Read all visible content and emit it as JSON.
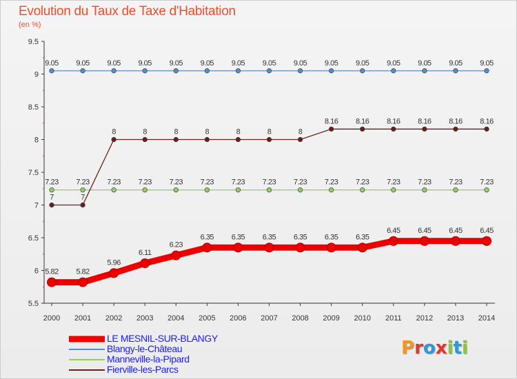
{
  "header": {
    "title": "Evolution du Taux de Taxe d'Habitation",
    "subtitle": "(en %)"
  },
  "logo": {
    "text": "Proxiti",
    "colors": [
      "#f7941d",
      "#2b9ad6",
      "#8cc63f",
      "#e4342b"
    ]
  },
  "chart_data": {
    "type": "line",
    "title": "Evolution du Taux de Taxe d'Habitation",
    "ylabel": "(en %)",
    "xlabel": "",
    "x": [
      "2000",
      "2001",
      "2002",
      "2003",
      "2004",
      "2005",
      "2006",
      "2007",
      "2008",
      "2009",
      "2010",
      "2011",
      "2012",
      "2013",
      "2014"
    ],
    "ylim": [
      5.5,
      9.5
    ],
    "yticks": [
      "5.5",
      "6",
      "6.5",
      "7",
      "7.5",
      "8",
      "8.5",
      "9",
      "9.5"
    ],
    "grid": false,
    "legend_position": "bottom-left",
    "series": [
      {
        "name": "LE MESNIL-SUR-BLANGY",
        "color": "#ee0000",
        "values": [
          5.82,
          5.82,
          5.96,
          6.11,
          6.23,
          6.35,
          6.35,
          6.35,
          6.35,
          6.35,
          6.35,
          6.45,
          6.45,
          6.45,
          6.45
        ],
        "labels": [
          "5.82",
          "5.82",
          "5.96",
          "6.11",
          "6.23",
          "6.35",
          "6.35",
          "6.35",
          "6.35",
          "6.35",
          "6.35",
          "6.45",
          "6.45",
          "6.45",
          "6.45"
        ]
      },
      {
        "name": "Blangy-le-Château",
        "color": "#4f8fd0",
        "values": [
          9.05,
          9.05,
          9.05,
          9.05,
          9.05,
          9.05,
          9.05,
          9.05,
          9.05,
          9.05,
          9.05,
          9.05,
          9.05,
          9.05,
          9.05
        ],
        "labels": [
          "9.05",
          "9.05",
          "9.05",
          "9.05",
          "9.05",
          "9.05",
          "9.05",
          "9.05",
          "9.05",
          "9.05",
          "9.05",
          "9.05",
          "9.05",
          "9.05",
          "9.05"
        ]
      },
      {
        "name": "Manneville-la-Pipard",
        "color": "#8fd15f",
        "values": [
          7.23,
          7.23,
          7.23,
          7.23,
          7.23,
          7.23,
          7.23,
          7.23,
          7.23,
          7.23,
          7.23,
          7.23,
          7.23,
          7.23,
          7.23
        ],
        "labels": [
          "7.23",
          "7.23",
          "7.23",
          "7.23",
          "7.23",
          "7.23",
          "7.23",
          "7.23",
          "7.23",
          "7.23",
          "7.23",
          "7.23",
          "7.23",
          "7.23",
          "7.23"
        ]
      },
      {
        "name": "Fierville-les-Parcs",
        "color": "#6b1e1e",
        "values": [
          7,
          7,
          8,
          8,
          8,
          8,
          8,
          8,
          8,
          8.16,
          8.16,
          8.16,
          8.16,
          8.16,
          8.16
        ],
        "labels": [
          "7",
          "7",
          "8",
          "8",
          "8",
          "8",
          "8",
          "8",
          "8",
          "8.16",
          "8.16",
          "8.16",
          "8.16",
          "8.16",
          "8.16"
        ]
      }
    ]
  }
}
